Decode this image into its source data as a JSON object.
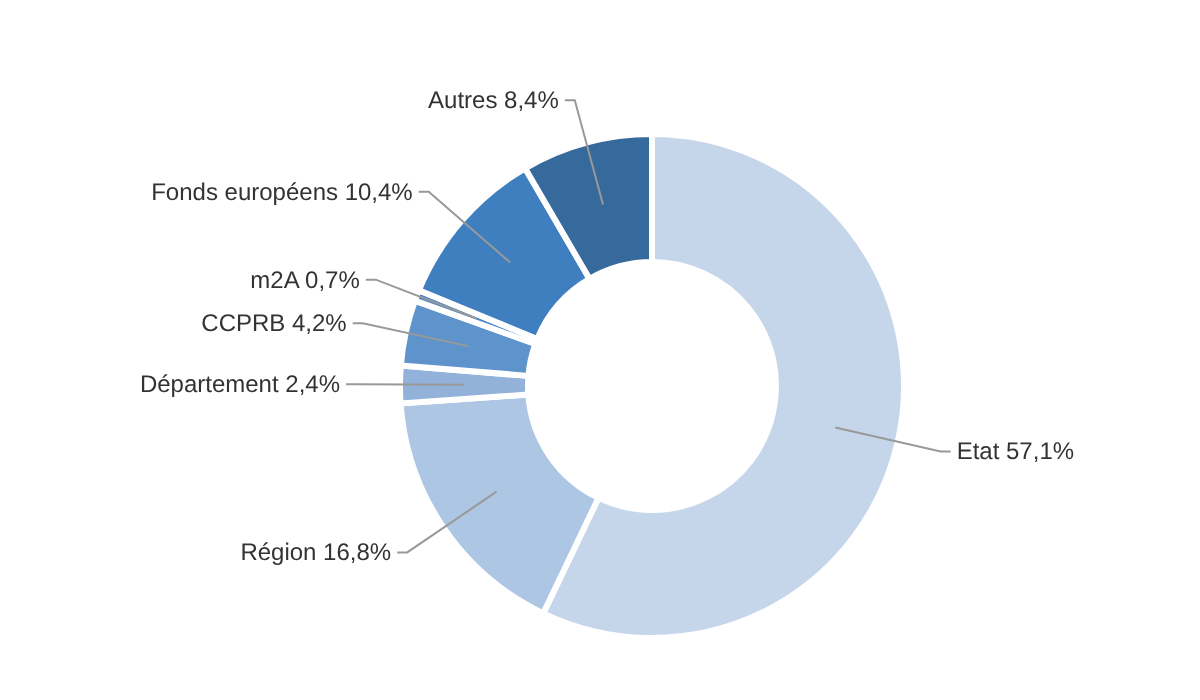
{
  "chart_data": {
    "type": "donut",
    "categories": [
      "Etat",
      "Région",
      "Département",
      "CCPRB",
      "m2A",
      "Fonds européens",
      "Autres"
    ],
    "values": [
      57.1,
      16.8,
      2.4,
      4.2,
      0.7,
      10.4,
      8.4
    ],
    "colors": [
      "#c5d6eb",
      "#adc6e4",
      "#92b2d9",
      "#5f93cc",
      "#4c86c6",
      "#3f7fbf",
      "#36699c"
    ],
    "value_labels": [
      "57,1%",
      "16,8%",
      "2,4%",
      "4,2%",
      "0,7%",
      "10,4%",
      "8,4%"
    ],
    "legend": false
  }
}
